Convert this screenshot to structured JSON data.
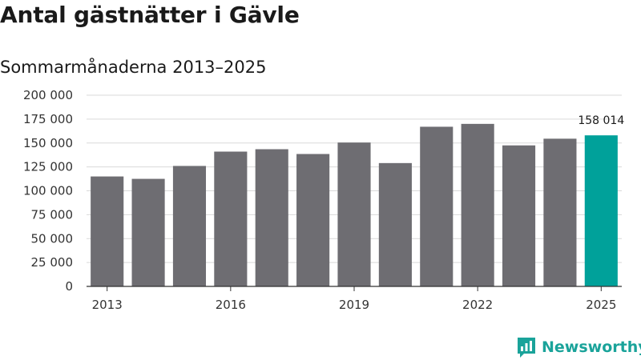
{
  "header": {
    "title": "Antal gästnätter i Gävle",
    "subtitle": "Sommarmånaderna 2013–2025"
  },
  "brand": {
    "name": "Newsworthy",
    "icon": "newsworthy-logo-icon"
  },
  "colors": {
    "bar": "#6e6d72",
    "highlight": "#00a19a",
    "grid": "#d9d9d9",
    "axis": "#333333"
  },
  "chart_data": {
    "type": "bar",
    "title": "Antal gästnätter i Gävle",
    "subtitle": "Sommarmånaderna 2013–2025",
    "categories": [
      "2013",
      "2014",
      "2015",
      "2016",
      "2017",
      "2018",
      "2019",
      "2020",
      "2021",
      "2022",
      "2023",
      "2024",
      "2025"
    ],
    "values": [
      115000,
      112500,
      126000,
      141000,
      143500,
      138500,
      150500,
      129000,
      167000,
      170000,
      147500,
      154500,
      158014
    ],
    "ylim": [
      0,
      200000
    ],
    "yticks": [
      0,
      25000,
      50000,
      75000,
      100000,
      125000,
      150000,
      175000,
      200000
    ],
    "ytick_labels": [
      "0",
      "25 000",
      "50 000",
      "75 000",
      "100 000",
      "125 000",
      "150 000",
      "175 000",
      "200 000"
    ],
    "xtick_labels": [
      "2013",
      "2016",
      "2019",
      "2022",
      "2025"
    ],
    "highlight_category": "2025",
    "data_labels": [
      {
        "category": "2025",
        "text": "158 014"
      }
    ],
    "grid": true,
    "legend": "none"
  }
}
